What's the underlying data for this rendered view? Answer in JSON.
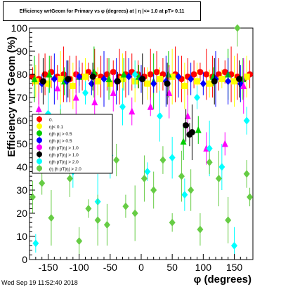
{
  "timestamp": "Wed Sep 19 11:52:40 2018",
  "chart_data": {
    "type": "scatter",
    "title": "Efficiency wrtGeom for Primary vs φ (degrees) at | η |<= 1.0 at pT> 0.11",
    "xlabel": "φ (degrees)",
    "ylabel": "Efficiency wrt Geom (%)",
    "xlim": [
      -180,
      180
    ],
    "ylim": [
      0,
      100
    ],
    "xticks": [
      -150,
      -100,
      -50,
      0,
      50,
      100,
      150
    ],
    "yticks": [
      0,
      10,
      20,
      30,
      40,
      50,
      60,
      70,
      80,
      90,
      100
    ],
    "grid": false,
    "legend_position": "left-middle",
    "series": [
      {
        "name": "0.",
        "marker": "circle",
        "color": "#ff0000",
        "x": [
          -175,
          -165,
          -155,
          -145,
          -135,
          -125,
          -115,
          -105,
          -95,
          -85,
          -75,
          -65,
          -55,
          -45,
          -35,
          -25,
          -15,
          -5,
          5,
          15,
          25,
          35,
          45,
          55,
          65,
          75,
          85,
          95,
          105,
          115,
          125,
          135,
          145,
          155,
          165,
          175
        ],
        "y": [
          79,
          78,
          80,
          81,
          79,
          80,
          78,
          80,
          79,
          81,
          80,
          79,
          80,
          81,
          79,
          80,
          81,
          80,
          79,
          80,
          81,
          80,
          79,
          80,
          78,
          79,
          80,
          81,
          80,
          79,
          80,
          81,
          80,
          79,
          78,
          80
        ]
      },
      {
        "name": "η|< 0.1",
        "marker": "square",
        "color": "#ffff00",
        "x": [
          -170,
          -150,
          -130,
          -110,
          -90,
          -70,
          -50,
          -30,
          -10,
          10,
          30,
          50,
          70,
          90,
          110,
          130,
          150,
          170
        ],
        "y": [
          77,
          76,
          78,
          75,
          79,
          77,
          76,
          78,
          77,
          76,
          78,
          79,
          75,
          77,
          76,
          78,
          77,
          79
        ]
      },
      {
        "name": "η|h p| > 0.5",
        "marker": "triangle",
        "color": "#00cc00",
        "x": [
          -172,
          -148,
          -124,
          -100,
          -76,
          -52,
          -28,
          -4,
          20,
          44,
          68,
          92,
          116,
          140,
          164
        ],
        "y": [
          78,
          80,
          77,
          79,
          81,
          78,
          80,
          79,
          77,
          80,
          51,
          56,
          79,
          80,
          78
        ]
      },
      {
        "name": "η|h p| > 0.5",
        "marker": "diamond",
        "color": "#0000ff",
        "x": [
          -160,
          -140,
          -120,
          -100,
          -80,
          -60,
          -40,
          -20,
          0,
          20,
          40,
          60,
          80,
          100,
          120,
          140,
          160
        ],
        "y": [
          76,
          78,
          77,
          79,
          76,
          78,
          77,
          79,
          78,
          76,
          77,
          79,
          78,
          76,
          78,
          77,
          76
        ]
      },
      {
        "name": "η|h pT|η| > 1.0",
        "marker": "triangle",
        "color": "#ff00ff",
        "x": [
          -165,
          -135,
          -105,
          -75,
          -45,
          -15,
          15,
          45,
          75,
          105,
          135,
          165
        ],
        "y": [
          65,
          74,
          70,
          68,
          72,
          64,
          66,
          72,
          62,
          48,
          50,
          75
        ]
      },
      {
        "name": "η|h pT|η| > 1.0",
        "marker": "circle",
        "color": "#000000",
        "x": [
          -158,
          -118,
          -78,
          -38,
          2,
          42,
          72,
          78,
          82,
          118,
          158
        ],
        "y": [
          77,
          78,
          79,
          77,
          78,
          76,
          58,
          54,
          55,
          77,
          78
        ]
      },
      {
        "name": "η|h pT|η| > 2.0",
        "marker": "diamond",
        "color": "#00ffff",
        "x": [
          -170,
          -150,
          -130,
          -110,
          -90,
          -70,
          -50,
          -30,
          -10,
          10,
          30,
          50,
          70,
          90,
          110,
          130,
          150,
          170
        ],
        "y": [
          7,
          63,
          58,
          38,
          72,
          25,
          45,
          66,
          80,
          38,
          62,
          44,
          28,
          70,
          48,
          40,
          6,
          60
        ]
      },
      {
        "name": "(η |h pT|η| > 2.0",
        "marker": "diamond",
        "color": "#66cc44",
        "x": [
          -175,
          -160,
          -145,
          -130,
          -115,
          -100,
          -85,
          -70,
          -55,
          -40,
          -25,
          -10,
          5,
          20,
          35,
          50,
          65,
          80,
          95,
          110,
          125,
          140,
          155,
          170,
          175
        ],
        "y": [
          27,
          33,
          18,
          55,
          35,
          8,
          22,
          17,
          15,
          43,
          23,
          20,
          35,
          30,
          43,
          16,
          36,
          30,
          13,
          42,
          35,
          17,
          100,
          37,
          27
        ]
      }
    ]
  }
}
